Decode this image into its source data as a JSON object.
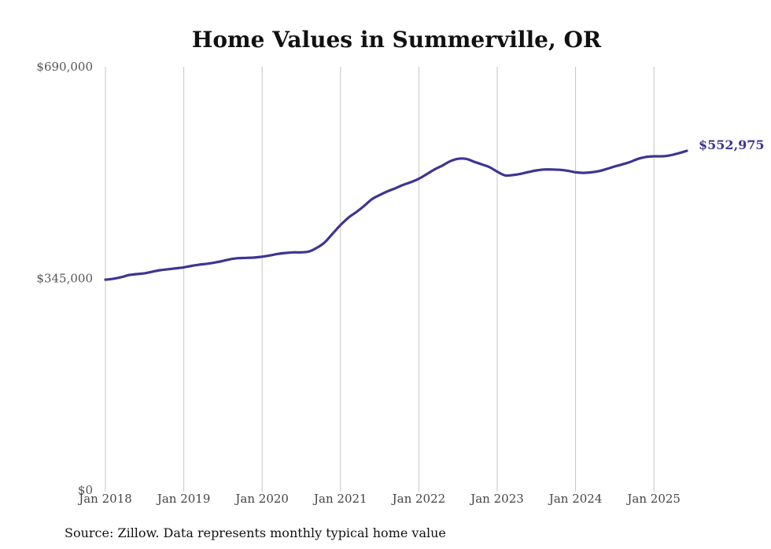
{
  "chart_data": {
    "type": "line",
    "title": "Home Values in Summerville, OR",
    "xlabel": "",
    "ylabel": "",
    "ylim": [
      0,
      690000
    ],
    "yticks": [
      {
        "value": 0,
        "label": "$0"
      },
      {
        "value": 345000,
        "label": "$345,000"
      },
      {
        "value": 690000,
        "label": "$690,000"
      }
    ],
    "xticks": [
      {
        "value": 2018.0,
        "label": "Jan 2018"
      },
      {
        "value": 2019.0,
        "label": "Jan 2019"
      },
      {
        "value": 2020.0,
        "label": "Jan 2020"
      },
      {
        "value": 2021.0,
        "label": "Jan 2021"
      },
      {
        "value": 2022.0,
        "label": "Jan 2022"
      },
      {
        "value": 2023.0,
        "label": "Jan 2023"
      },
      {
        "value": 2024.0,
        "label": "Jan 2024"
      },
      {
        "value": 2025.0,
        "label": "Jan 2025"
      }
    ],
    "grid": "vertical",
    "series": [
      {
        "color": "#3d3591",
        "end_label": "$552,975",
        "points": [
          [
            2018.0,
            343000
          ],
          [
            2018.1,
            344500
          ],
          [
            2018.2,
            347000
          ],
          [
            2018.3,
            350500
          ],
          [
            2018.4,
            352000
          ],
          [
            2018.5,
            353500
          ],
          [
            2018.6,
            356000
          ],
          [
            2018.7,
            358500
          ],
          [
            2018.8,
            360000
          ],
          [
            2018.9,
            361500
          ],
          [
            2019.0,
            363000
          ],
          [
            2019.1,
            365500
          ],
          [
            2019.2,
            367500
          ],
          [
            2019.3,
            369000
          ],
          [
            2019.4,
            371000
          ],
          [
            2019.5,
            373500
          ],
          [
            2019.6,
            376500
          ],
          [
            2019.7,
            378000
          ],
          [
            2019.8,
            378500
          ],
          [
            2019.9,
            379000
          ],
          [
            2020.0,
            380500
          ],
          [
            2020.1,
            382500
          ],
          [
            2020.2,
            385000
          ],
          [
            2020.3,
            386500
          ],
          [
            2020.4,
            387500
          ],
          [
            2020.5,
            387500
          ],
          [
            2020.6,
            389000
          ],
          [
            2020.7,
            395000
          ],
          [
            2020.8,
            404000
          ],
          [
            2020.9,
            418000
          ],
          [
            2021.0,
            432000
          ],
          [
            2021.1,
            444000
          ],
          [
            2021.2,
            453000
          ],
          [
            2021.3,
            463000
          ],
          [
            2021.4,
            474000
          ],
          [
            2021.5,
            481000
          ],
          [
            2021.6,
            487000
          ],
          [
            2021.7,
            492000
          ],
          [
            2021.8,
            497500
          ],
          [
            2021.9,
            502000
          ],
          [
            2022.0,
            507500
          ],
          [
            2022.1,
            515000
          ],
          [
            2022.2,
            522500
          ],
          [
            2022.3,
            529000
          ],
          [
            2022.4,
            536000
          ],
          [
            2022.5,
            540000
          ],
          [
            2022.6,
            540000
          ],
          [
            2022.7,
            535500
          ],
          [
            2022.8,
            531000
          ],
          [
            2022.9,
            526500
          ],
          [
            2023.0,
            519000
          ],
          [
            2023.1,
            513000
          ],
          [
            2023.2,
            513500
          ],
          [
            2023.3,
            515500
          ],
          [
            2023.4,
            518500
          ],
          [
            2023.5,
            521000
          ],
          [
            2023.6,
            522500
          ],
          [
            2023.7,
            522500
          ],
          [
            2023.8,
            522000
          ],
          [
            2023.9,
            520500
          ],
          [
            2024.0,
            518000
          ],
          [
            2024.1,
            517000
          ],
          [
            2024.2,
            518000
          ],
          [
            2024.3,
            520000
          ],
          [
            2024.4,
            523500
          ],
          [
            2024.5,
            527500
          ],
          [
            2024.6,
            531000
          ],
          [
            2024.7,
            535000
          ],
          [
            2024.8,
            540000
          ],
          [
            2024.9,
            543000
          ],
          [
            2025.0,
            544000
          ],
          [
            2025.1,
            544000
          ],
          [
            2025.2,
            545500
          ],
          [
            2025.3,
            548500
          ],
          [
            2025.42,
            552975
          ]
        ]
      }
    ],
    "source": "Source: Zillow. Data represents monthly typical home value"
  }
}
